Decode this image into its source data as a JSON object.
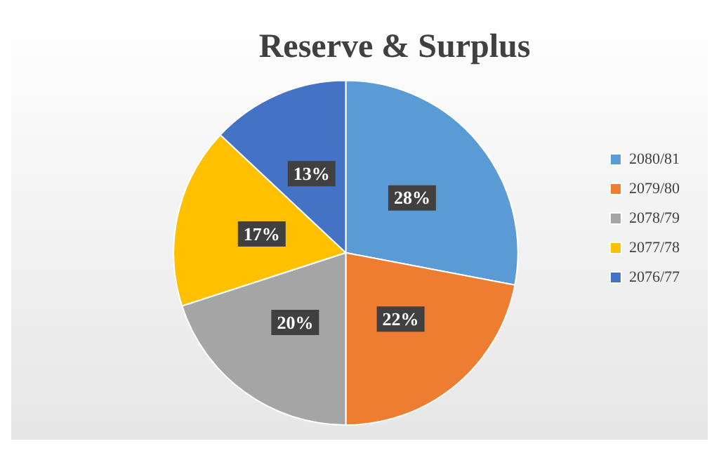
{
  "chart_data": {
    "type": "pie",
    "title": "Reserve & Surplus",
    "categories": [
      "2080/81",
      "2079/80",
      "2078/79",
      "2077/78",
      "2076/77"
    ],
    "values": [
      28,
      22,
      20,
      17,
      13
    ],
    "colors": [
      "#5b9bd5",
      "#ed7d31",
      "#a5a5a5",
      "#ffc000",
      "#4472c4"
    ],
    "value_labels": [
      "28%",
      "22%",
      "20%",
      "17%",
      "13%"
    ],
    "legend": "right"
  }
}
